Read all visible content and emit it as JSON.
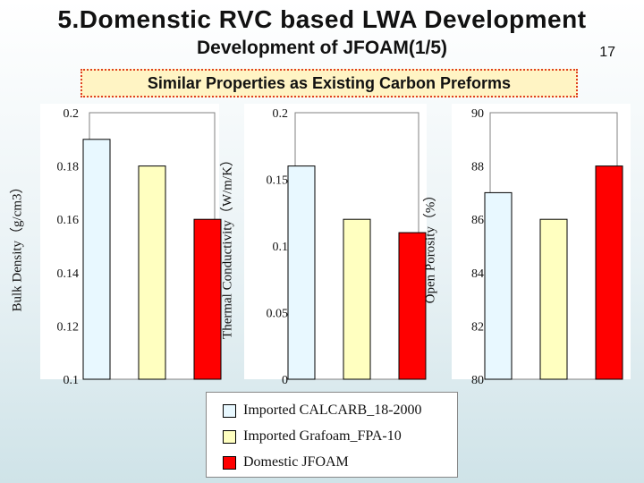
{
  "slide": {
    "title": "5.Domenstic RVC based LWA Development",
    "subtitle": "Development of JFOAM(1/5)",
    "page_number": "17",
    "banner": "Similar Properties as Existing Carbon Preforms"
  },
  "legend": {
    "items": [
      {
        "label": "Imported CALCARB_18-2000",
        "color": "#e8f8ff"
      },
      {
        "label": "Imported Grafoam_FPA-10",
        "color": "#ffffc0"
      },
      {
        "label": "Domestic JFOAM",
        "color": "#ff0000"
      }
    ]
  },
  "chart_data": [
    {
      "type": "bar",
      "ylabel": "Bulk Density（g/cm3）",
      "ylim": [
        0.1,
        0.2
      ],
      "ticks": [
        "0.2",
        "0.18",
        "0.16",
        "0.14",
        "0.12",
        "0.1"
      ],
      "tick_values": [
        0.2,
        0.18,
        0.16,
        0.14,
        0.12,
        0.1
      ],
      "grid": false,
      "series": [
        {
          "values": [
            0.19
          ]
        },
        {
          "values": [
            0.18
          ]
        },
        {
          "values": [
            0.16
          ]
        }
      ]
    },
    {
      "type": "bar",
      "ylabel": "Thermal Conductivity（W/m/K）",
      "ylim": [
        0,
        0.2
      ],
      "ticks": [
        "0.2",
        "0.15",
        "0.1",
        "0.05",
        "0"
      ],
      "tick_values": [
        0.2,
        0.15,
        0.1,
        0.05,
        0
      ],
      "grid": false,
      "series": [
        {
          "values": [
            0.16
          ]
        },
        {
          "values": [
            0.12
          ]
        },
        {
          "values": [
            0.11
          ]
        }
      ]
    },
    {
      "type": "bar",
      "ylabel": "Open Porosity（%）",
      "ylim": [
        80,
        90
      ],
      "ticks": [
        "90",
        "88",
        "86",
        "84",
        "82",
        "80"
      ],
      "tick_values": [
        90,
        88,
        86,
        84,
        82,
        80
      ],
      "grid": false,
      "series": [
        {
          "values": [
            87
          ]
        },
        {
          "values": [
            86
          ]
        },
        {
          "values": [
            88
          ]
        }
      ]
    }
  ]
}
